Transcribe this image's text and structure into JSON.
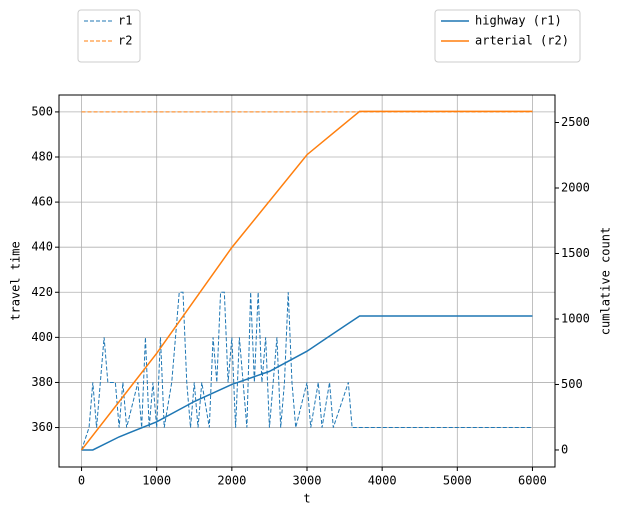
{
  "chart_data": {
    "type": "line",
    "xlabel": "t",
    "ylabel": "travel time",
    "y2label": "cumlative count",
    "xlim": [
      -300,
      6300
    ],
    "ylim": [
      342.5,
      507.5
    ],
    "y2lim": [
      -130,
      2710
    ],
    "xticks": [
      0,
      1000,
      2000,
      3000,
      4000,
      5000,
      6000
    ],
    "yticks": [
      360,
      380,
      400,
      420,
      440,
      460,
      480,
      500
    ],
    "y2ticks": [
      0,
      500,
      1000,
      1500,
      2000,
      2500
    ],
    "grid": true,
    "legend": {
      "y": "above left",
      "y2": "above right"
    },
    "series": [
      {
        "name": "r1",
        "color": "#1f77b4",
        "linestyle": "dashed",
        "axis": "y",
        "x": [
          0,
          100,
          150,
          200,
          250,
          300,
          350,
          450,
          500,
          550,
          600,
          750,
          800,
          850,
          900,
          950,
          1000,
          1050,
          1100,
          1200,
          1300,
          1350,
          1400,
          1450,
          1500,
          1550,
          1600,
          1700,
          1750,
          1800,
          1850,
          1900,
          1950,
          2000,
          2050,
          2100,
          2150,
          2200,
          2250,
          2300,
          2350,
          2400,
          2450,
          2500,
          2550,
          2600,
          2650,
          2700,
          2750,
          2800,
          2850,
          3000,
          3050,
          3150,
          3200,
          3300,
          3350,
          3550,
          3600,
          6000
        ],
        "values": [
          350,
          360,
          380,
          360,
          380,
          400,
          380,
          380,
          360,
          380,
          360,
          380,
          360,
          400,
          360,
          380,
          360,
          400,
          360,
          380,
          420,
          420,
          380,
          360,
          380,
          360,
          380,
          360,
          400,
          380,
          420,
          420,
          380,
          400,
          360,
          400,
          380,
          360,
          420,
          380,
          420,
          380,
          400,
          360,
          380,
          400,
          360,
          380,
          420,
          380,
          360,
          380,
          360,
          380,
          360,
          380,
          360,
          380,
          360,
          360
        ]
      },
      {
        "name": "r2",
        "color": "#ff7f0e",
        "linestyle": "dashed",
        "axis": "y",
        "x": [
          0,
          6000
        ],
        "values": [
          500,
          500
        ]
      },
      {
        "name": "highway (r1)",
        "color": "#1f77b4",
        "linestyle": "solid",
        "axis": "y2",
        "x": [
          0,
          150,
          500,
          1000,
          1500,
          2000,
          2500,
          3000,
          3500,
          3700,
          6000
        ],
        "values": [
          0,
          0,
          100,
          215,
          370,
          500,
          600,
          754,
          946,
          1023,
          1023
        ]
      },
      {
        "name": "arterial (r2)",
        "color": "#ff7f0e",
        "linestyle": "solid",
        "axis": "y2",
        "x": [
          0,
          1000,
          2000,
          3000,
          3600,
          3700,
          6000
        ],
        "values": [
          0,
          738,
          1546,
          2254,
          2538,
          2585,
          2585
        ]
      }
    ]
  }
}
